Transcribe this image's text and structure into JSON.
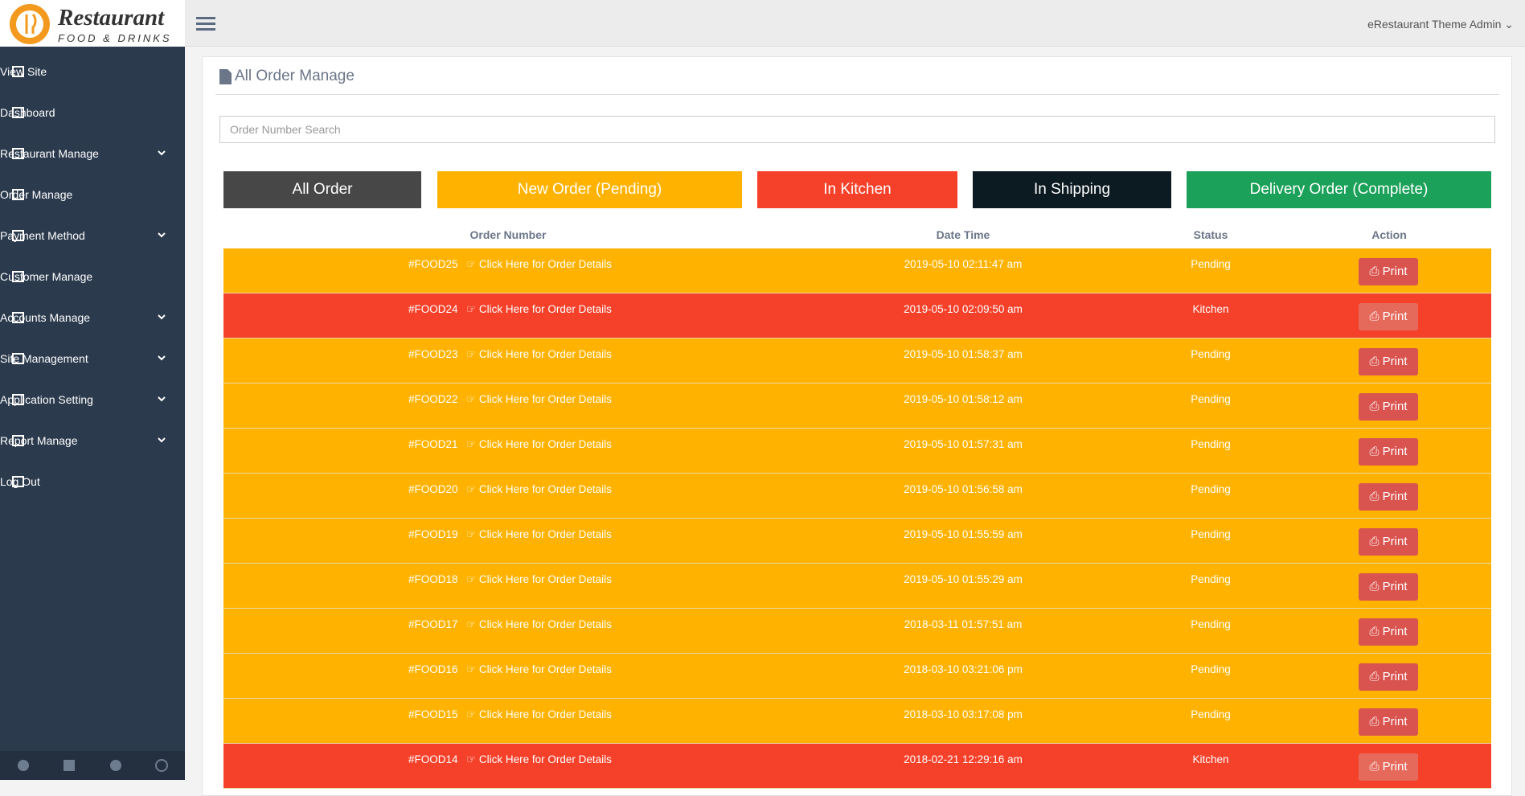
{
  "header": {
    "brand": "Restaurant",
    "brand_sub": "FOOD & DRINKS",
    "user": "eRestaurant Theme Admin"
  },
  "sidebar": {
    "items": [
      {
        "label": "View Site",
        "dropdown": false
      },
      {
        "label": "Dashboard",
        "dropdown": false
      },
      {
        "label": "Restaurant Manage",
        "dropdown": true
      },
      {
        "label": "Order Manage",
        "dropdown": false
      },
      {
        "label": "Payment Method",
        "dropdown": true
      },
      {
        "label": "Customer Manage",
        "dropdown": false
      },
      {
        "label": "Accounts Manage",
        "dropdown": true
      },
      {
        "label": "Site Management",
        "dropdown": true
      },
      {
        "label": "Application Setting",
        "dropdown": true
      },
      {
        "label": "Report Manage",
        "dropdown": true
      },
      {
        "label": "Log Out",
        "dropdown": false
      }
    ]
  },
  "page": {
    "title": "All Order Manage",
    "search_placeholder": "Order Number Search",
    "filters": [
      {
        "label": "All Order",
        "color": "#474747"
      },
      {
        "label": "New Order (Pending)",
        "color": "#ffb300"
      },
      {
        "label": "In Kitchen",
        "color": "#f6412a"
      },
      {
        "label": "In Shipping",
        "color": "#0c1a21"
      },
      {
        "label": "Delivery Order (Complete)",
        "color": "#1ba159"
      }
    ]
  },
  "table": {
    "columns": [
      "Order Number",
      "Date Time",
      "Status",
      "Action"
    ],
    "link_text": "Click Here for Order Details",
    "action": "Print",
    "rows": [
      {
        "order": "#FOOD25",
        "datetime": "2019-05-10 02:11:47 am",
        "status": "Pending"
      },
      {
        "order": "#FOOD24",
        "datetime": "2019-05-10 02:09:50 am",
        "status": "Kitchen"
      },
      {
        "order": "#FOOD23",
        "datetime": "2019-05-10 01:58:37 am",
        "status": "Pending"
      },
      {
        "order": "#FOOD22",
        "datetime": "2019-05-10 01:58:12 am",
        "status": "Pending"
      },
      {
        "order": "#FOOD21",
        "datetime": "2019-05-10 01:57:31 am",
        "status": "Pending"
      },
      {
        "order": "#FOOD20",
        "datetime": "2019-05-10 01:56:58 am",
        "status": "Pending"
      },
      {
        "order": "#FOOD19",
        "datetime": "2019-05-10 01:55:59 am",
        "status": "Pending"
      },
      {
        "order": "#FOOD18",
        "datetime": "2019-05-10 01:55:29 am",
        "status": "Pending"
      },
      {
        "order": "#FOOD17",
        "datetime": "2018-03-11 01:57:51 am",
        "status": "Pending"
      },
      {
        "order": "#FOOD16",
        "datetime": "2018-03-10 03:21:06 pm",
        "status": "Pending"
      },
      {
        "order": "#FOOD15",
        "datetime": "2018-03-10 03:17:08 pm",
        "status": "Pending"
      },
      {
        "order": "#FOOD14",
        "datetime": "2018-02-21 12:29:16 am",
        "status": "Kitchen"
      }
    ]
  }
}
